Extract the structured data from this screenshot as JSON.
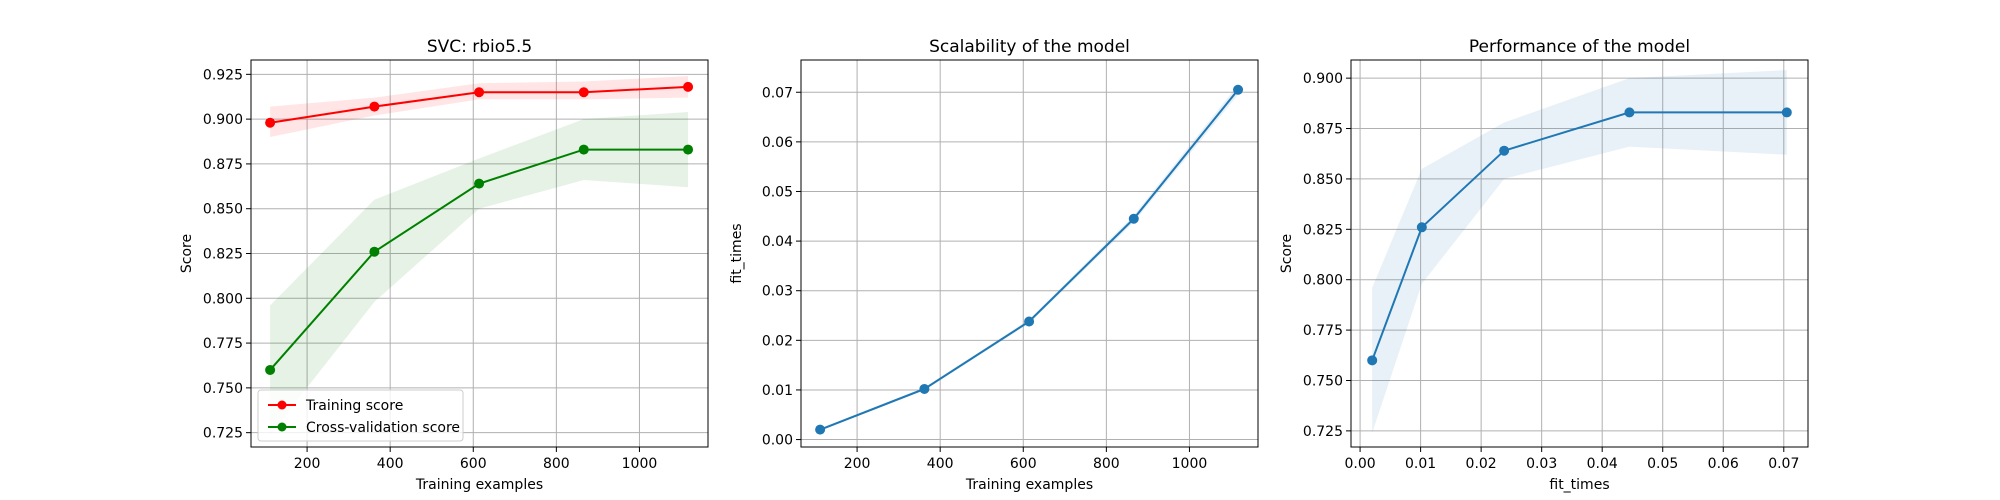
{
  "chart_data": [
    {
      "type": "line",
      "title": "SVC: rbio5.5",
      "xlabel": "Training examples",
      "ylabel": "Score",
      "xlim": [
        65,
        1165
      ],
      "ylim": [
        0.717,
        0.933
      ],
      "xticks": [
        200,
        400,
        600,
        800,
        1000
      ],
      "yticks": [
        0.725,
        0.75,
        0.775,
        0.8,
        0.825,
        0.85,
        0.875,
        0.9,
        0.925
      ],
      "tick_decimals": 3,
      "grid": true,
      "legend": "lower-left",
      "series": [
        {
          "name": "Training score",
          "color": "#ff0000",
          "x": [
            111,
            362,
            614,
            866,
            1117
          ],
          "y": [
            0.898,
            0.907,
            0.915,
            0.915,
            0.918
          ],
          "band_lower": [
            0.89,
            0.902,
            0.911,
            0.911,
            0.912
          ],
          "band_upper": [
            0.907,
            0.912,
            0.92,
            0.921,
            0.924
          ]
        },
        {
          "name": "Cross-validation score",
          "color": "#008000",
          "x": [
            111,
            362,
            614,
            866,
            1117
          ],
          "y": [
            0.76,
            0.826,
            0.864,
            0.883,
            0.883
          ],
          "band_lower": [
            0.724,
            0.798,
            0.85,
            0.866,
            0.862
          ],
          "band_upper": [
            0.796,
            0.855,
            0.878,
            0.9,
            0.904
          ]
        }
      ]
    },
    {
      "type": "line",
      "title": "Scalability of the model",
      "xlabel": "Training examples",
      "ylabel": "fit_times",
      "xlim": [
        65,
        1165
      ],
      "ylim": [
        -0.0015,
        0.0765
      ],
      "xticks": [
        200,
        400,
        600,
        800,
        1000
      ],
      "yticks": [
        0.0,
        0.01,
        0.02,
        0.03,
        0.04,
        0.05,
        0.06,
        0.07
      ],
      "tick_decimals": 2,
      "grid": true,
      "series": [
        {
          "color": "#1f77b4",
          "x": [
            111,
            362,
            614,
            866,
            1117
          ],
          "y": [
            0.002,
            0.0102,
            0.0238,
            0.0445,
            0.0705
          ],
          "band_lower": [
            0.0018,
            0.0099,
            0.0234,
            0.0438,
            0.0695
          ],
          "band_upper": [
            0.0022,
            0.0105,
            0.0242,
            0.0452,
            0.0715
          ]
        }
      ]
    },
    {
      "type": "line",
      "title": "Performance of the model",
      "xlabel": "fit_times",
      "ylabel": "Score",
      "xlim": [
        -0.0015,
        0.074
      ],
      "ylim": [
        0.717,
        0.909
      ],
      "xticks": [
        0.0,
        0.01,
        0.02,
        0.03,
        0.04,
        0.05,
        0.06,
        0.07
      ],
      "yticks": [
        0.725,
        0.75,
        0.775,
        0.8,
        0.825,
        0.85,
        0.875,
        0.9
      ],
      "xtick_decimals": 2,
      "tick_decimals": 3,
      "grid": true,
      "series": [
        {
          "color": "#1f77b4",
          "x": [
            0.002,
            0.0102,
            0.0238,
            0.0445,
            0.0705
          ],
          "y": [
            0.76,
            0.826,
            0.864,
            0.883,
            0.883
          ],
          "band_lower": [
            0.724,
            0.798,
            0.85,
            0.866,
            0.862
          ],
          "band_upper": [
            0.796,
            0.855,
            0.878,
            0.9,
            0.904
          ]
        }
      ]
    }
  ]
}
